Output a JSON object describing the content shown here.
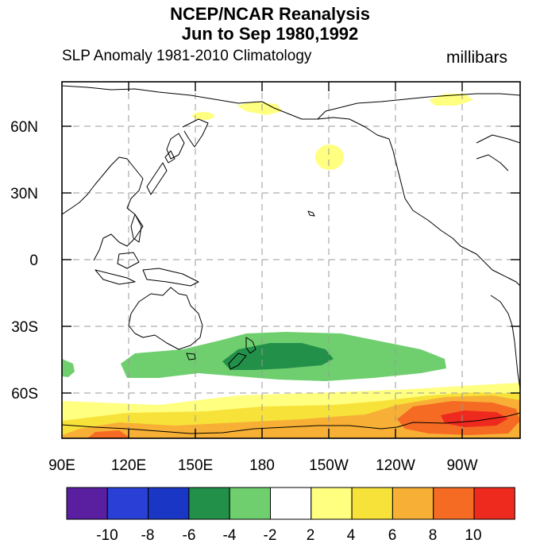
{
  "header": {
    "title_line1": "NCEP/NCAR Reanalysis",
    "title_line2": "Jun to Sep 1980,1992",
    "subtitle_left": "SLP Anomaly  1981-2010 Climatology",
    "subtitle_right": "millibars"
  },
  "map": {
    "lat_labels": [
      "60N",
      "30N",
      "0",
      "30S",
      "60S"
    ],
    "lon_labels": [
      "90E",
      "120E",
      "150E",
      "180",
      "150W",
      "120W",
      "90W"
    ]
  },
  "colorbar": {
    "labels": [
      "-10",
      "-8",
      "-6",
      "-4",
      "-2",
      "2",
      "4",
      "6",
      "8",
      "10"
    ],
    "colors": [
      "#5a1fa0",
      "#2a3fd6",
      "#1a36c4",
      "#23904a",
      "#6fcf6f",
      "#ffffff",
      "#ffff80",
      "#f7e23a",
      "#f7b035",
      "#f56b24",
      "#ee2a1e"
    ]
  }
}
